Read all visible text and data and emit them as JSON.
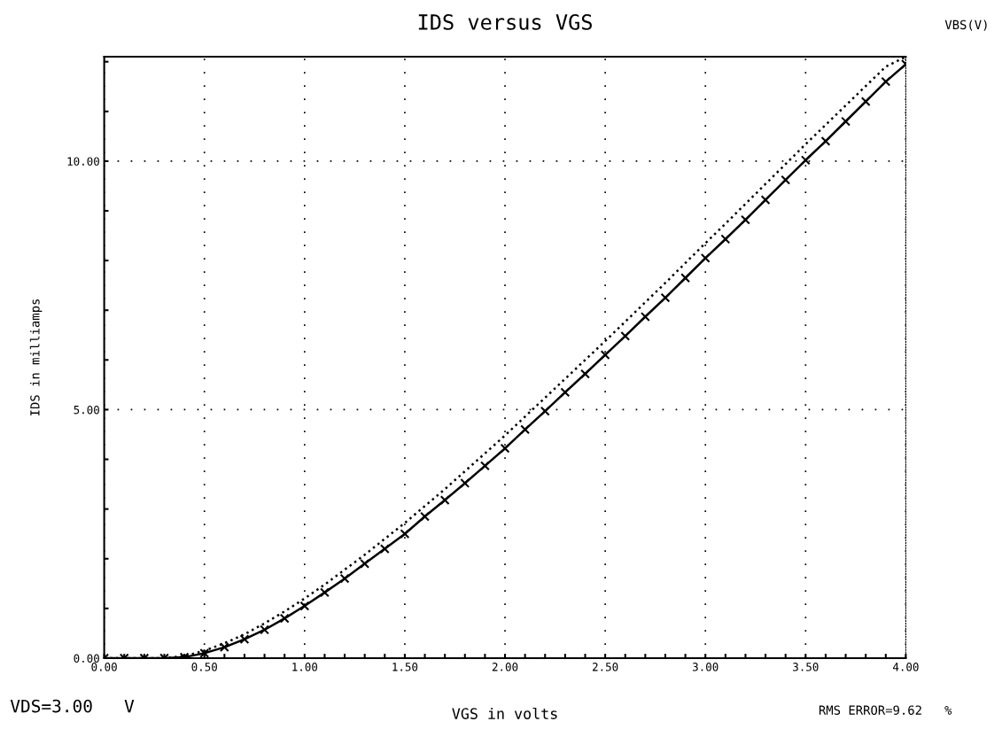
{
  "chart_data": {
    "type": "line",
    "title": "IDS versus VGS",
    "xlabel": "VGS in volts",
    "ylabel": "IDS in milliamps",
    "annotations": [
      "VBS(V)",
      "VDS=3.00   V",
      "RMS ERROR=9.62   %"
    ],
    "x": [
      0,
      0.1,
      0.2,
      0.3,
      0.4,
      0.5,
      0.6,
      0.7,
      0.8,
      0.9,
      1.0,
      1.1,
      1.2,
      1.3,
      1.4,
      1.5,
      1.6,
      1.7,
      1.8,
      1.9,
      2.0,
      2.1,
      2.2,
      2.3,
      2.4,
      2.5,
      2.6,
      2.7,
      2.8,
      2.9,
      3.0,
      3.1,
      3.2,
      3.3,
      3.4,
      3.5,
      3.6,
      3.7,
      3.8,
      3.9,
      4.0
    ],
    "series": [
      {
        "color": "#000000",
        "line_style": "solid",
        "marker": "none",
        "values": [
          0,
          0,
          0,
          0,
          0.02,
          0.1,
          0.22,
          0.38,
          0.57,
          0.8,
          1.05,
          1.32,
          1.6,
          1.9,
          2.2,
          2.5,
          2.85,
          3.18,
          3.52,
          3.87,
          4.22,
          4.6,
          4.97,
          5.35,
          5.72,
          6.1,
          6.48,
          6.87,
          7.25,
          7.65,
          8.05,
          8.43,
          8.82,
          9.22,
          9.62,
          10.02,
          10.4,
          10.8,
          11.2,
          11.6,
          11.95
        ]
      },
      {
        "color": "#000000",
        "line_style": "dotted",
        "marker": "none",
        "values": [
          0,
          0,
          0,
          0,
          0.04,
          0.15,
          0.3,
          0.48,
          0.7,
          0.94,
          1.2,
          1.48,
          1.78,
          2.08,
          2.4,
          2.72,
          3.06,
          3.4,
          3.76,
          4.12,
          4.48,
          4.86,
          5.24,
          5.62,
          6.0,
          6.38,
          6.77,
          7.16,
          7.55,
          7.95,
          8.35,
          8.74,
          9.14,
          9.54,
          9.94,
          10.34,
          10.73,
          11.12,
          11.51,
          11.9,
          12.1
        ]
      },
      {
        "type": "scatter",
        "color": "#000000",
        "marker": "cross",
        "values": [
          0,
          0,
          0,
          0,
          0.02,
          0.1,
          0.22,
          0.38,
          0.57,
          0.8,
          1.05,
          1.32,
          1.6,
          1.9,
          2.2,
          2.5,
          2.85,
          3.18,
          3.52,
          3.87,
          4.22,
          4.6,
          4.97,
          5.35,
          5.72,
          6.1,
          6.48,
          6.87,
          7.25,
          7.65,
          8.05,
          8.43,
          8.82,
          9.22,
          9.62,
          10.02,
          10.4,
          10.8,
          11.2,
          11.6,
          11.95
        ]
      }
    ],
    "xlim": [
      0,
      4
    ],
    "ylim": [
      0,
      12.1
    ],
    "xticks": [
      {
        "value": 0,
        "label": "0.00"
      },
      {
        "value": 0.1,
        "label": null
      },
      {
        "value": 0.2,
        "label": null
      },
      {
        "value": 0.3,
        "label": null
      },
      {
        "value": 0.4,
        "label": null
      },
      {
        "value": 0.5,
        "label": "0.50"
      },
      {
        "value": 0.6,
        "label": null
      },
      {
        "value": 0.7,
        "label": null
      },
      {
        "value": 0.8,
        "label": null
      },
      {
        "value": 0.9,
        "label": null
      },
      {
        "value": 1.0,
        "label": "1.00"
      },
      {
        "value": 1.1,
        "label": null
      },
      {
        "value": 1.2,
        "label": null
      },
      {
        "value": 1.3,
        "label": null
      },
      {
        "value": 1.4,
        "label": null
      },
      {
        "value": 1.5,
        "label": "1.50"
      },
      {
        "value": 1.6,
        "label": null
      },
      {
        "value": 1.7,
        "label": null
      },
      {
        "value": 1.8,
        "label": null
      },
      {
        "value": 1.9,
        "label": null
      },
      {
        "value": 2.0,
        "label": "2.00"
      },
      {
        "value": 2.1,
        "label": null
      },
      {
        "value": 2.2,
        "label": null
      },
      {
        "value": 2.3,
        "label": null
      },
      {
        "value": 2.4,
        "label": null
      },
      {
        "value": 2.5,
        "label": "2.50"
      },
      {
        "value": 2.6,
        "label": null
      },
      {
        "value": 2.7,
        "label": null
      },
      {
        "value": 2.8,
        "label": null
      },
      {
        "value": 2.9,
        "label": null
      },
      {
        "value": 3.0,
        "label": "3.00"
      },
      {
        "value": 3.1,
        "label": null
      },
      {
        "value": 3.2,
        "label": null
      },
      {
        "value": 3.3,
        "label": null
      },
      {
        "value": 3.4,
        "label": null
      },
      {
        "value": 3.5,
        "label": "3.50"
      },
      {
        "value": 3.6,
        "label": null
      },
      {
        "value": 3.7,
        "label": null
      },
      {
        "value": 3.8,
        "label": null
      },
      {
        "value": 3.9,
        "label": null
      },
      {
        "value": 4.0,
        "label": "4.00"
      }
    ],
    "yticks": [
      {
        "value": 0,
        "label": "0.00"
      },
      {
        "value": 1,
        "label": null
      },
      {
        "value": 2,
        "label": null
      },
      {
        "value": 3,
        "label": null
      },
      {
        "value": 4,
        "label": null
      },
      {
        "value": 5,
        "label": "5.00"
      },
      {
        "value": 6,
        "label": null
      },
      {
        "value": 7,
        "label": null
      },
      {
        "value": 8,
        "label": null
      },
      {
        "value": 9,
        "label": null
      },
      {
        "value": 10,
        "label": "10.00"
      },
      {
        "value": 11,
        "label": null
      },
      {
        "value": 12,
        "label": null
      }
    ],
    "grid": true,
    "legend": false
  }
}
